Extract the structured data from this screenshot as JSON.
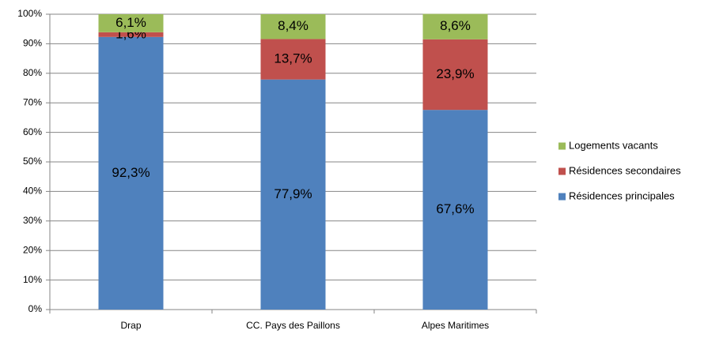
{
  "chart_data": {
    "type": "stacked-bar",
    "categories": [
      "Drap",
      "CC. Pays des Paillons",
      "Alpes Maritimes"
    ],
    "series": [
      {
        "name": "Résidences principales",
        "color": "#4f81bd",
        "values": [
          92.3,
          77.9,
          67.6
        ],
        "value_labels": [
          "92,3%",
          "77,9%",
          "67,6%"
        ]
      },
      {
        "name": "Résidences secondaires",
        "color": "#c0504d",
        "values": [
          1.6,
          13.7,
          23.9
        ],
        "value_labels": [
          "1,6%",
          "13,7%",
          "23,9%"
        ]
      },
      {
        "name": "Logements vacants",
        "color": "#9bbb59",
        "values": [
          6.1,
          8.4,
          8.6
        ],
        "value_labels": [
          "6,1%",
          "8,4%",
          "8,6%"
        ]
      }
    ],
    "ylim": [
      0,
      100
    ],
    "yticks": [
      {
        "value": 0,
        "label": "0%"
      },
      {
        "value": 10,
        "label": "10%"
      },
      {
        "value": 20,
        "label": "20%"
      },
      {
        "value": 30,
        "label": "30%"
      },
      {
        "value": 40,
        "label": "40%"
      },
      {
        "value": 50,
        "label": "50%"
      },
      {
        "value": 60,
        "label": "60%"
      },
      {
        "value": 70,
        "label": "70%"
      },
      {
        "value": 80,
        "label": "80%"
      },
      {
        "value": 90,
        "label": "90%"
      },
      {
        "value": 100,
        "label": "100%"
      }
    ],
    "grid": true,
    "legend": "right"
  }
}
